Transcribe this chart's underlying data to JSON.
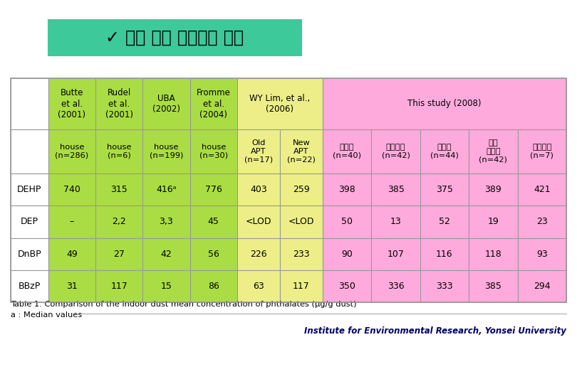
{
  "title_text": "✓ 선행 연구 결과와의 비교",
  "subtitle": "Table 1. Comparison of the indoor dust mean concentration of phthalates (μg/g dust)",
  "footer_note": "a : Median values",
  "footer_institute": "Institute for Environmental Research, Yonsei University",
  "title_bg": "#3DC99A",
  "title_border": "#3DC99A",
  "row_labels": [
    "DEHP",
    "DEP",
    "DnBP",
    "BBzP"
  ],
  "data": [
    [
      "740",
      "315",
      "416ᵃ",
      "776",
      "403",
      "259",
      "398",
      "385",
      "375",
      "389",
      "421"
    ],
    [
      "–",
      "2,2",
      "3,3",
      "45",
      "<LOD",
      "<LOD",
      "50",
      "13",
      "52",
      "19",
      "23"
    ],
    [
      "49",
      "27",
      "42",
      "56",
      "226",
      "233",
      "90",
      "107",
      "116",
      "118",
      "93"
    ],
    [
      "31",
      "117",
      "15",
      "86",
      "63",
      "117",
      "350",
      "336",
      "333",
      "385",
      "294"
    ]
  ],
  "color_green": "#AADD44",
  "color_yellow": "#EEEE88",
  "color_pink": "#FFAADD",
  "color_white": "#FFFFFF",
  "color_hdr_green": "#AADD44",
  "color_hdr_yellow": "#EEEE88",
  "color_hdr_pink": "#FFAADD",
  "color_border": "#999999"
}
